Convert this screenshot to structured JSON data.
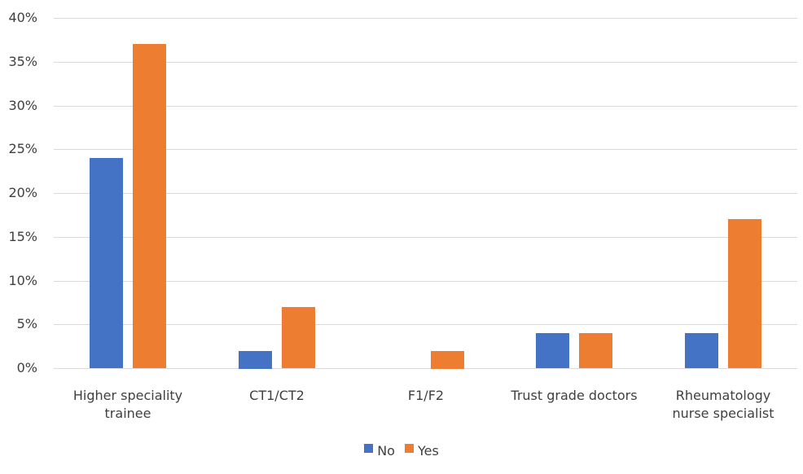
{
  "chart_data": {
    "type": "bar",
    "title": "",
    "xlabel": "",
    "ylabel": "",
    "ylim": [
      0,
      0.4
    ],
    "y_ticks": [
      "0%",
      "5%",
      "10%",
      "15%",
      "20%",
      "25%",
      "30%",
      "35%",
      "40%"
    ],
    "grid": true,
    "legend_position": "bottom",
    "categories": [
      "Higher speciality trainee",
      "CT1/CT2",
      "F1/F2",
      "Trust grade doctors",
      "Rheumatology nurse specialist"
    ],
    "category_lines": [
      [
        "Higher speciality",
        "trainee"
      ],
      [
        "CT1/CT2"
      ],
      [
        "F1/F2"
      ],
      [
        "Trust grade doctors"
      ],
      [
        "Rheumatology",
        "nurse specialist"
      ]
    ],
    "series": [
      {
        "name": "No",
        "color": "#4472c4",
        "values": [
          24,
          2,
          0,
          4,
          4
        ]
      },
      {
        "name": "Yes",
        "color": "#ed7d31",
        "values": [
          37,
          7,
          2,
          4,
          17
        ]
      }
    ],
    "unit": "%"
  },
  "legend": {
    "items": [
      {
        "label": "No",
        "color": "#4472c4"
      },
      {
        "label": "Yes",
        "color": "#ed7d31"
      }
    ]
  }
}
